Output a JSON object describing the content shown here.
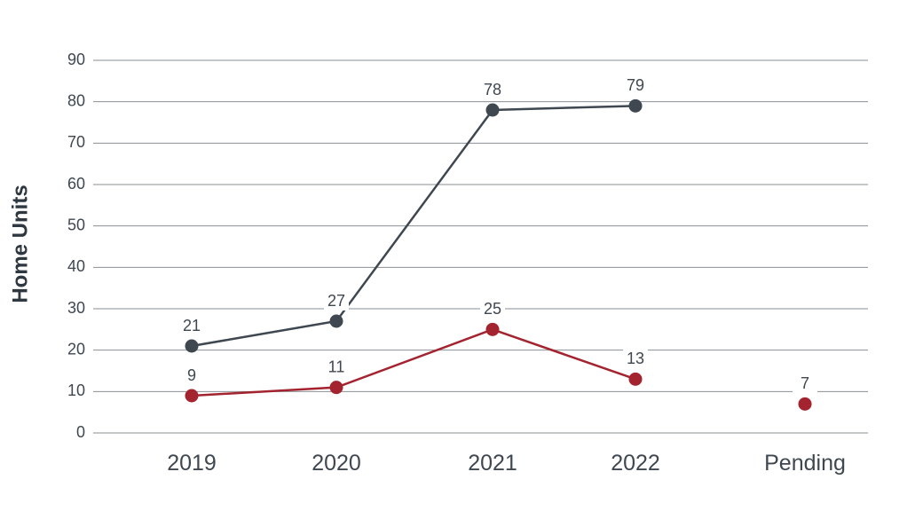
{
  "chart_data": {
    "type": "line",
    "title": "",
    "xlabel": "",
    "ylabel": "Home Units",
    "categories": [
      "2019",
      "2020",
      "2021",
      "2022",
      "Pending"
    ],
    "yticks": [
      0,
      10,
      20,
      30,
      40,
      50,
      60,
      70,
      80,
      90
    ],
    "ylim": [
      0,
      90
    ],
    "grid": true,
    "legend": "none",
    "series": [
      {
        "color": "#3f4750",
        "values": [
          21,
          27,
          78,
          79,
          null
        ]
      },
      {
        "color": "#a3232f",
        "values": [
          9,
          11,
          25,
          13,
          7
        ]
      }
    ]
  }
}
